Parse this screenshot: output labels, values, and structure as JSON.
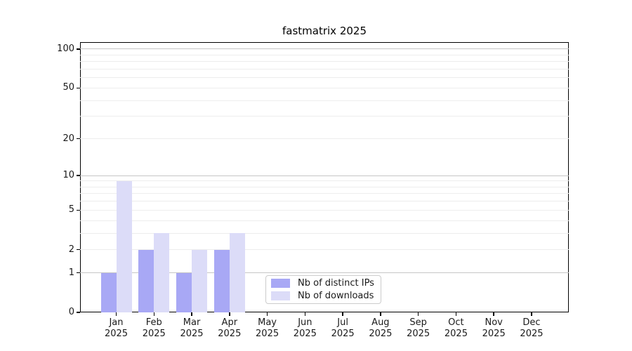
{
  "chart_data": {
    "type": "bar",
    "title": "fastmatrix 2025",
    "categories": [
      "Jan",
      "Feb",
      "Mar",
      "Apr",
      "May",
      "Jun",
      "Jul",
      "Aug",
      "Sep",
      "Oct",
      "Nov",
      "Dec"
    ],
    "x_tick_line2": "2025",
    "series": [
      {
        "name": "Nb of distinct IPs",
        "color": "#a8a8f5",
        "values": [
          1,
          2,
          1,
          2,
          0,
          0,
          0,
          0,
          0,
          0,
          0,
          0
        ]
      },
      {
        "name": "Nb of downloads",
        "color": "#dcdcf8",
        "values": [
          9,
          3,
          2,
          3,
          0,
          0,
          0,
          0,
          0,
          0,
          0,
          0
        ]
      }
    ],
    "xlabel": "",
    "ylabel": "",
    "yscale": "log1p",
    "ylim": [
      0,
      113
    ],
    "y_tick_values": [
      0,
      1,
      2,
      5,
      10,
      20,
      50,
      100
    ],
    "y_tick_labels": [
      "0",
      "1",
      "2",
      "5",
      "10",
      "20",
      "50",
      "100"
    ],
    "grid_major_values": [
      1,
      10,
      100
    ],
    "grid_minor_values": [
      2,
      3,
      4,
      5,
      6,
      7,
      8,
      9,
      20,
      30,
      40,
      50,
      60,
      70,
      80,
      90
    ],
    "legend": {
      "position": "lower-center"
    },
    "colors": {
      "grid_major": "#c6c6c6",
      "grid_minor": "#ededed",
      "axis": "#000000",
      "tick_text": "#1a1a1a"
    }
  }
}
